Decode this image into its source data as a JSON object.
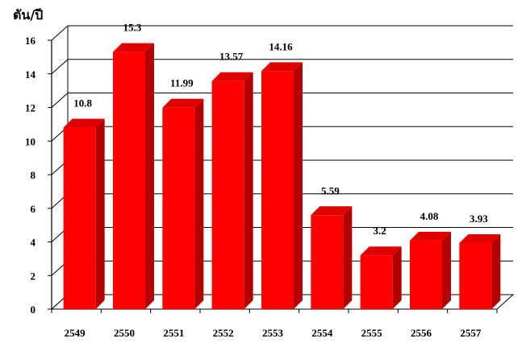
{
  "chart_data": {
    "type": "bar",
    "ylabel": "ตัน/ปี",
    "xlabel": "",
    "title": "",
    "categories": [
      "2549",
      "2550",
      "2551",
      "2552",
      "2553",
      "2554",
      "2555",
      "2556",
      "2557"
    ],
    "values": [
      10.8,
      15.3,
      11.99,
      13.57,
      14.16,
      5.59,
      3.2,
      4.08,
      3.93
    ],
    "value_labels": [
      "10.8",
      "15.3",
      "11.99",
      "13.57",
      "14.16",
      "5.59",
      "3.2",
      "4.08",
      "3.93"
    ],
    "ylim": [
      0,
      16
    ],
    "yticks": [
      "0",
      "2",
      "4",
      "6",
      "8",
      "10",
      "12",
      "14",
      "16"
    ],
    "grid": true,
    "style": "3d-bar",
    "colors": {
      "bar_front": "#ff0000",
      "bar_side": "#b30000",
      "bar_top": "#e00000",
      "grid": "#000000",
      "background": "#ffffff"
    }
  }
}
